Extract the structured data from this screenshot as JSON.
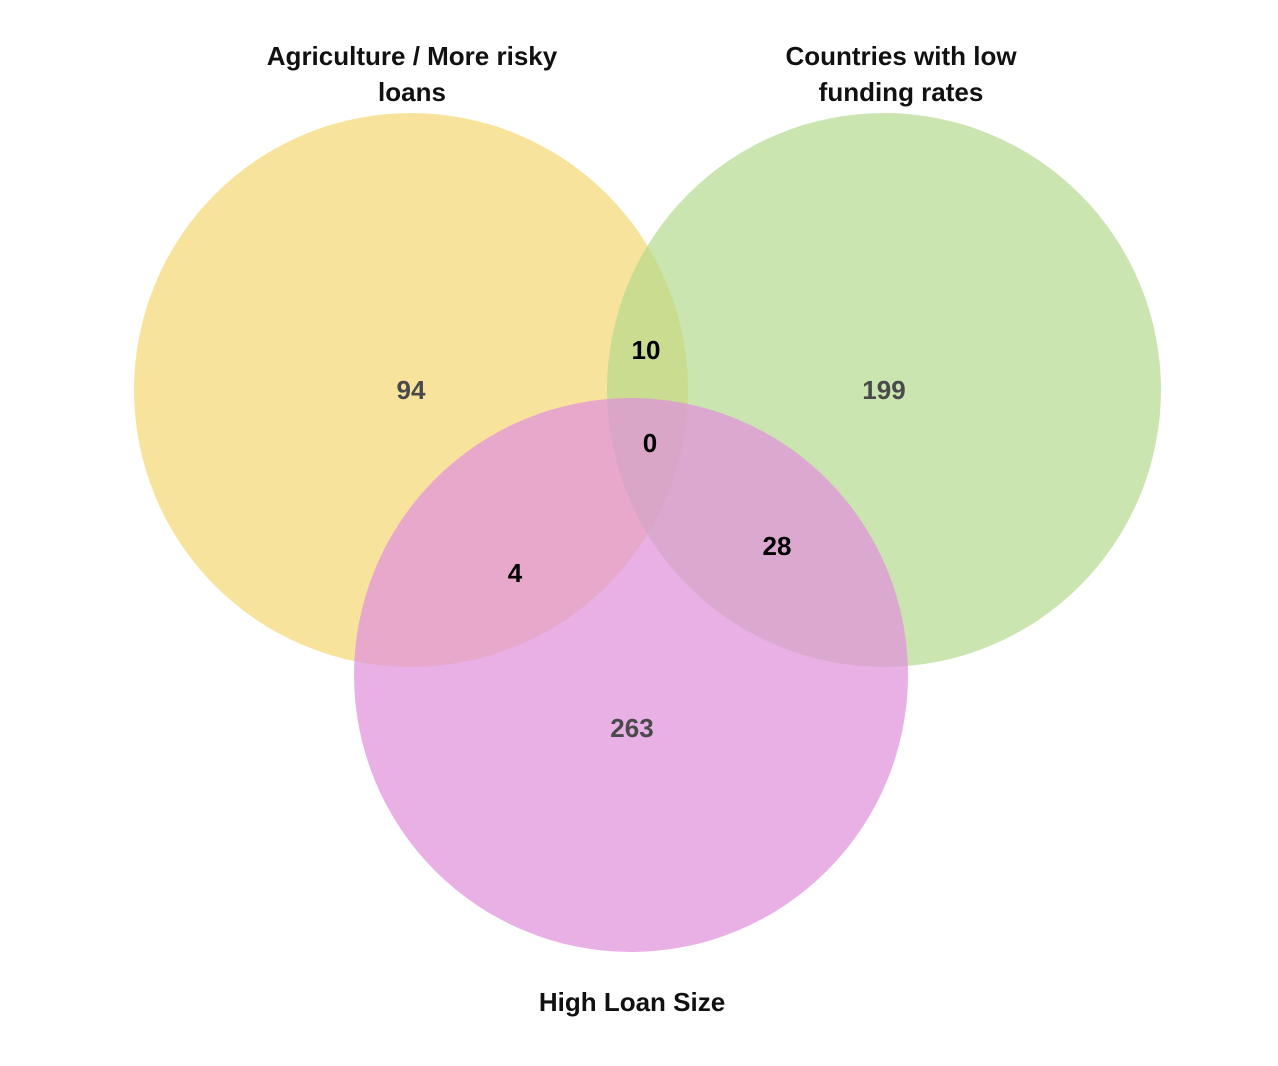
{
  "diagram": {
    "type": "venn",
    "sets": [
      {
        "id": "A",
        "label_lines": [
          "Agriculture / More risky",
          "loans"
        ],
        "color": "#f5d66e"
      },
      {
        "id": "B",
        "label_lines": [
          "Countries with low",
          "funding rates"
        ],
        "color": "#b3d98b"
      },
      {
        "id": "C",
        "label_lines": [
          "High Loan Size"
        ],
        "color": "#e192dd"
      }
    ],
    "regions": {
      "A_only": "94",
      "B_only": "199",
      "C_only": "263",
      "A_B": "10",
      "A_B_C": "0",
      "A_C": "4",
      "B_C": "28"
    }
  }
}
